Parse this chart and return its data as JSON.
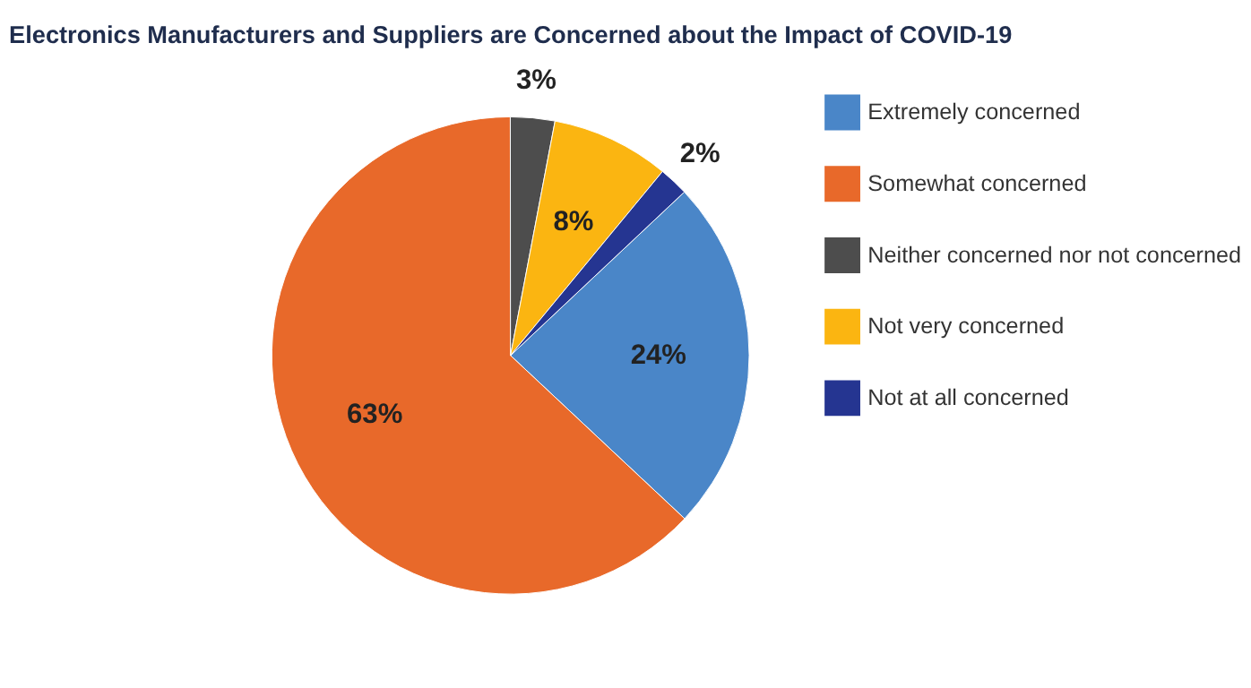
{
  "chart_data": {
    "type": "pie",
    "title": "Electronics Manufacturers and Suppliers are Concerned about the Impact of COVID-19",
    "categories": [
      "Extremely concerned",
      "Somewhat concerned",
      "Neither concerned nor not concerned",
      "Not very concerned",
      "Not at all concerned"
    ],
    "values": [
      24,
      63,
      3,
      8,
      2
    ],
    "colors": [
      "#4a86c8",
      "#e8692a",
      "#4d4d4d",
      "#fbb511",
      "#253591"
    ],
    "value_labels": [
      "24%",
      "63%",
      "3%",
      "8%",
      "2%"
    ],
    "legend": "right"
  }
}
